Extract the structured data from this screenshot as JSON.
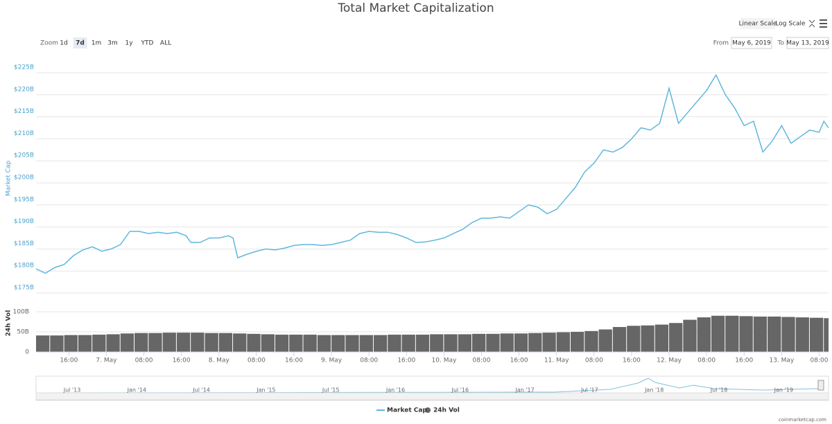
{
  "chart_data": [
    {
      "type": "line",
      "title": "Total Market Capitalization",
      "y_label": "Market Cap",
      "x": [
        9,
        11,
        13,
        15,
        17,
        19,
        21,
        23,
        25,
        27,
        29,
        31,
        33,
        35,
        37,
        39,
        41,
        42,
        44,
        46,
        48,
        50,
        51,
        52,
        54,
        56,
        58,
        60,
        62,
        64,
        66,
        68,
        70,
        72,
        74,
        76,
        78,
        80,
        82,
        84,
        86,
        88,
        90,
        92,
        94,
        96,
        98,
        100,
        102,
        104,
        106,
        108,
        110,
        112,
        114,
        116,
        118,
        120,
        122,
        124,
        126,
        128,
        130,
        132,
        134,
        136,
        138,
        140,
        142,
        144,
        146,
        148,
        150,
        152,
        154,
        156,
        158,
        160,
        162,
        164,
        166,
        168,
        170,
        172,
        174,
        176,
        177,
        178
      ],
      "series": [
        {
          "name": "Market Cap",
          "color": "#5fb6de",
          "values": [
            180.5,
            179.5,
            180.8,
            181.5,
            183.5,
            184.8,
            185.5,
            184.5,
            185,
            186,
            189,
            189,
            188.5,
            188.8,
            188.5,
            188.8,
            188,
            186.5,
            186.5,
            187.5,
            187.5,
            188,
            187.5,
            183,
            183.8,
            184.5,
            185,
            184.8,
            185.2,
            185.8,
            186,
            186,
            185.8,
            186,
            186.5,
            187,
            188.5,
            189,
            188.8,
            188.8,
            188.3,
            187.5,
            186.5,
            186.6,
            187,
            187.5,
            188.5,
            189.5,
            191,
            192,
            192,
            192.3,
            192,
            193.5,
            195,
            194.5,
            193,
            194,
            196.5,
            199,
            202.5,
            204.5,
            207.5,
            207,
            208,
            210,
            212.5,
            212,
            213.5,
            221.5,
            213.5,
            216,
            218.5,
            221,
            224.5,
            220,
            217,
            213,
            214,
            207,
            209.5,
            213,
            209,
            210.5,
            212,
            211.5,
            214,
            212.5
          ]
        }
      ],
      "xlim": [
        9,
        178
      ],
      "xticks": [
        {
          "value": 16,
          "label": "16:00"
        },
        {
          "value": 24,
          "label": "7. May"
        },
        {
          "value": 32,
          "label": "08:00"
        },
        {
          "value": 40,
          "label": "16:00"
        },
        {
          "value": 48,
          "label": "8. May"
        },
        {
          "value": 56,
          "label": "08:00"
        },
        {
          "value": 64,
          "label": "16:00"
        },
        {
          "value": 72,
          "label": "9. May"
        },
        {
          "value": 80,
          "label": "08:00"
        },
        {
          "value": 88,
          "label": "16:00"
        },
        {
          "value": 96,
          "label": "10. May"
        },
        {
          "value": 104,
          "label": "08:00"
        },
        {
          "value": 112,
          "label": "16:00"
        },
        {
          "value": 120,
          "label": "11. May"
        },
        {
          "value": 128,
          "label": "08:00"
        },
        {
          "value": 136,
          "label": "16:00"
        },
        {
          "value": 144,
          "label": "12. May"
        },
        {
          "value": 152,
          "label": "08:00"
        },
        {
          "value": 160,
          "label": "16:00"
        },
        {
          "value": 168,
          "label": "13. May"
        },
        {
          "value": 176,
          "label": "08:00"
        }
      ],
      "ylim": [
        175,
        225
      ],
      "yticks": [
        {
          "value": 175,
          "label": "$175B"
        },
        {
          "value": 180,
          "label": "$180B"
        },
        {
          "value": 185,
          "label": "$185B"
        },
        {
          "value": 190,
          "label": "$190B"
        },
        {
          "value": 195,
          "label": "$195B"
        },
        {
          "value": 200,
          "label": "$200B"
        },
        {
          "value": 205,
          "label": "$205B"
        },
        {
          "value": 210,
          "label": "$210B"
        },
        {
          "value": 215,
          "label": "$215B"
        },
        {
          "value": 220,
          "label": "$220B"
        },
        {
          "value": 225,
          "label": "$225B"
        }
      ],
      "grid": true
    },
    {
      "type": "bar",
      "y_label": "24h Vol",
      "x": [
        9,
        12,
        15,
        18,
        21,
        24,
        27,
        30,
        33,
        36,
        39,
        42,
        45,
        48,
        51,
        54,
        57,
        60,
        63,
        66,
        69,
        72,
        75,
        78,
        81,
        84,
        87,
        90,
        93,
        96,
        99,
        102,
        105,
        108,
        111,
        114,
        117,
        120,
        123,
        126,
        129,
        132,
        135,
        138,
        141,
        144,
        147,
        150,
        153,
        156,
        159,
        162,
        165,
        168,
        171,
        174,
        177
      ],
      "series": [
        {
          "name": "24h Vol",
          "color": "#666666",
          "values": [
            41,
            41,
            42,
            42,
            43,
            44,
            46,
            47,
            47,
            48,
            48,
            48,
            47,
            47,
            46,
            45,
            44,
            43,
            43,
            43,
            42,
            42,
            42,
            42,
            42,
            43,
            43,
            43,
            44,
            44,
            44,
            45,
            45,
            46,
            46,
            47,
            48,
            49,
            50,
            52,
            56,
            62,
            65,
            66,
            68,
            72,
            80,
            86,
            90,
            90,
            89,
            88,
            88,
            87,
            86,
            85,
            84
          ]
        }
      ],
      "xlim": [
        9,
        178
      ],
      "ylim": [
        0,
        143
      ],
      "yticks": [
        0,
        {
          "value": 50,
          "label": "50B"
        },
        {
          "value": 100,
          "label": "100B"
        }
      ],
      "grid": true
    }
  ],
  "controls": {
    "zoom_label": "Zoom",
    "zoom_buttons": [
      "1d",
      "7d",
      "1m",
      "3m",
      "1y",
      "YTD",
      "ALL"
    ],
    "scale_buttons": [
      "Linear Scale",
      "Log Scale"
    ],
    "from_label": "From",
    "from_date": "May 6, 2019",
    "to_label": "To",
    "to_date": "May 13, 2019"
  },
  "navigator": {
    "labels": [
      "Jul '13",
      "Jan '14",
      "Jul '14",
      "Jan '15",
      "Jul '15",
      "Jan '16",
      "Jul '16",
      "Jan '17",
      "Jul '17",
      "Jan '18",
      "Jul '18",
      "Jan '19"
    ]
  },
  "credit": "coinmarketcap.com"
}
